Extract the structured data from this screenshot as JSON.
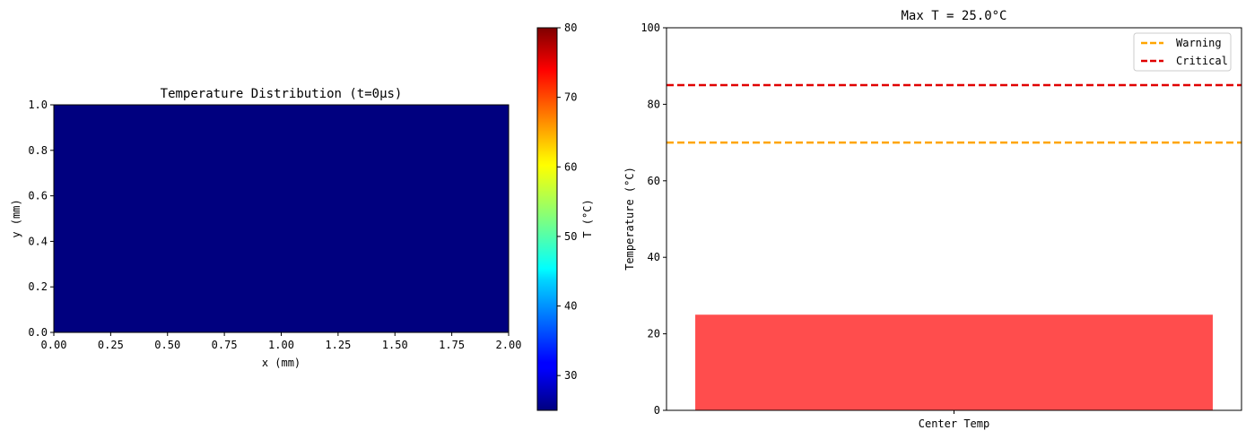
{
  "chart_data": [
    {
      "type": "heatmap",
      "title": "Temperature Distribution (t=0μs)",
      "xlabel": "x (mm)",
      "ylabel": "y (mm)",
      "xlim": [
        0.0,
        2.0
      ],
      "ylim": [
        0.0,
        1.0
      ],
      "xticks": [
        "0.00",
        "0.25",
        "0.50",
        "0.75",
        "1.00",
        "1.25",
        "1.50",
        "1.75",
        "2.00"
      ],
      "yticks": [
        "0.0",
        "0.2",
        "0.4",
        "0.6",
        "0.8",
        "1.0"
      ],
      "field_value": 25.0,
      "field_color": "#00007f",
      "colormap": "jet",
      "colorbar": {
        "label": "T (°C)",
        "range": [
          25,
          80
        ],
        "ticks": [
          "30",
          "40",
          "50",
          "60",
          "70",
          "80"
        ],
        "tick_values": [
          30,
          40,
          50,
          60,
          70,
          80
        ]
      }
    },
    {
      "type": "bar",
      "title": "Max T = 25.0°C",
      "xlabel": "",
      "ylabel": "Temperature (°C)",
      "categories": [
        "Center Temp"
      ],
      "values": [
        25.0
      ],
      "bar_color": "#ff4d4d",
      "ylim": [
        0,
        100
      ],
      "yticks": [
        "0",
        "20",
        "40",
        "60",
        "80",
        "100"
      ],
      "reference_lines": [
        {
          "name": "Warning",
          "value": 70,
          "color": "#ffa500",
          "style": "dashed"
        },
        {
          "name": "Critical",
          "value": 85,
          "color": "#e00000",
          "style": "dashed"
        }
      ],
      "legend_position": "top-right"
    }
  ]
}
